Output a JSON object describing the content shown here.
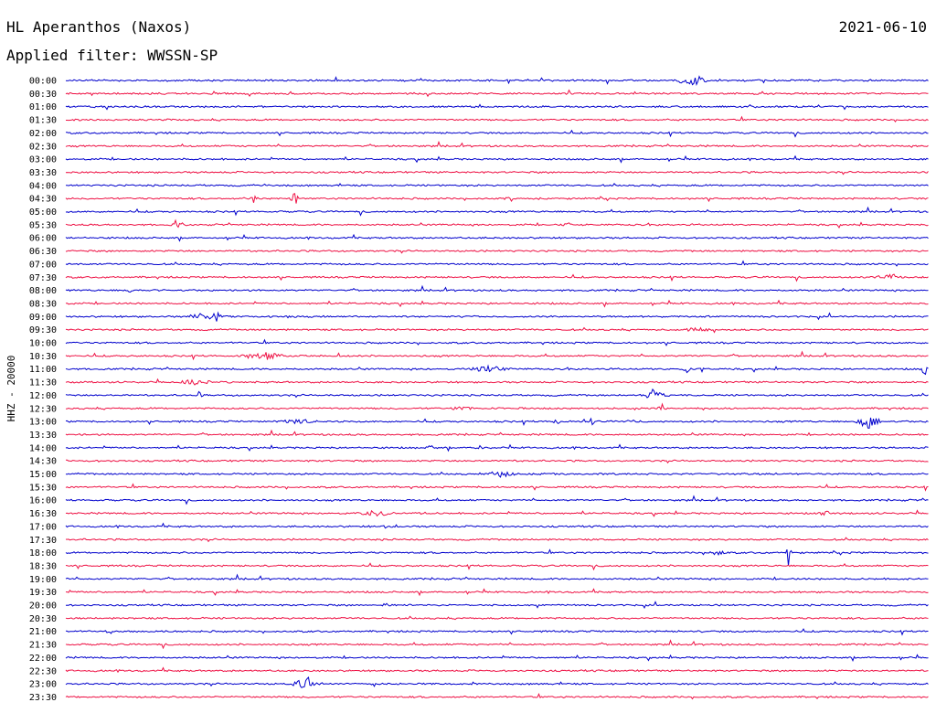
{
  "header": {
    "station": "HL Aperanthos (Naxos)",
    "date": "2021-06-10",
    "filter": "Applied filter: WWSSN-SP"
  },
  "chart_data": {
    "type": "line",
    "ylabel": "HHZ - 20000",
    "row_labels": [
      "00:00",
      "00:30",
      "01:00",
      "01:30",
      "02:00",
      "02:30",
      "03:00",
      "03:30",
      "04:00",
      "04:30",
      "05:00",
      "05:30",
      "06:00",
      "06:30",
      "07:00",
      "07:30",
      "08:00",
      "08:30",
      "09:00",
      "09:30",
      "10:00",
      "10:30",
      "11:00",
      "11:30",
      "12:00",
      "12:30",
      "13:00",
      "13:30",
      "14:00",
      "14:30",
      "15:00",
      "15:30",
      "16:00",
      "16:30",
      "17:00",
      "17:30",
      "18:00",
      "18:30",
      "19:00",
      "19:30",
      "20:00",
      "20:30",
      "21:00",
      "21:30",
      "22:00",
      "22:30",
      "23:00",
      "23:30"
    ],
    "trace_colors": [
      "#0000cc",
      "#ee1144"
    ],
    "event_fraction_range": [
      0,
      1
    ],
    "events": [
      {
        "row": 0,
        "t": 0.725,
        "amp": 9,
        "width": 0.022
      },
      {
        "row": 8,
        "t": 0.23,
        "amp": 3,
        "width": 0.004
      },
      {
        "row": 9,
        "t": 0.217,
        "amp": 10,
        "width": 0.006
      },
      {
        "row": 9,
        "t": 0.265,
        "amp": 10,
        "width": 0.006
      },
      {
        "row": 9,
        "t": 0.515,
        "amp": 6,
        "width": 0.006
      },
      {
        "row": 11,
        "t": 0.13,
        "amp": 8,
        "width": 0.008
      },
      {
        "row": 11,
        "t": 0.58,
        "amp": 5,
        "width": 0.006
      },
      {
        "row": 15,
        "t": 0.955,
        "amp": 4,
        "width": 0.03
      },
      {
        "row": 16,
        "t": 0.075,
        "amp": 5,
        "width": 0.004
      },
      {
        "row": 18,
        "t": 0.175,
        "amp": 9,
        "width": 0.006
      },
      {
        "row": 18,
        "t": 0.155,
        "amp": 4,
        "width": 0.02
      },
      {
        "row": 19,
        "t": 0.73,
        "amp": 3,
        "width": 0.04
      },
      {
        "row": 21,
        "t": 0.23,
        "amp": 5,
        "width": 0.04
      },
      {
        "row": 22,
        "t": 0.72,
        "amp": 8,
        "width": 0.006
      },
      {
        "row": 22,
        "t": 0.49,
        "amp": 4,
        "width": 0.04
      },
      {
        "row": 22,
        "t": 0.995,
        "amp": 9,
        "width": 0.004
      },
      {
        "row": 23,
        "t": 0.15,
        "amp": 4,
        "width": 0.03
      },
      {
        "row": 24,
        "t": 0.155,
        "amp": 6,
        "width": 0.004
      },
      {
        "row": 24,
        "t": 0.68,
        "amp": 7,
        "width": 0.02
      },
      {
        "row": 25,
        "t": 0.69,
        "amp": 10,
        "width": 0.006
      },
      {
        "row": 25,
        "t": 0.46,
        "amp": 4,
        "width": 0.02
      },
      {
        "row": 26,
        "t": 0.27,
        "amp": 4,
        "width": 0.03
      },
      {
        "row": 26,
        "t": 0.57,
        "amp": 5,
        "width": 0.008
      },
      {
        "row": 26,
        "t": 0.61,
        "amp": 6,
        "width": 0.006
      },
      {
        "row": 26,
        "t": 0.655,
        "amp": 6,
        "width": 0.006
      },
      {
        "row": 26,
        "t": 0.93,
        "amp": 9,
        "width": 0.018
      },
      {
        "row": 28,
        "t": 0.42,
        "amp": 4,
        "width": 0.01
      },
      {
        "row": 28,
        "t": 0.48,
        "amp": 4,
        "width": 0.006
      },
      {
        "row": 30,
        "t": 0.505,
        "amp": 5,
        "width": 0.02
      },
      {
        "row": 33,
        "t": 0.36,
        "amp": 4,
        "width": 0.03
      },
      {
        "row": 33,
        "t": 0.88,
        "amp": 4,
        "width": 0.01
      },
      {
        "row": 34,
        "t": 0.37,
        "amp": 3,
        "width": 0.004
      },
      {
        "row": 36,
        "t": 0.757,
        "amp": 4,
        "width": 0.012
      },
      {
        "row": 36,
        "t": 0.838,
        "amp": 26,
        "width": 0.003
      },
      {
        "row": 40,
        "t": 0.37,
        "amp": 3,
        "width": 0.008
      },
      {
        "row": 42,
        "t": 0.05,
        "amp": 3,
        "width": 0.008
      },
      {
        "row": 46,
        "t": 0.28,
        "amp": 9,
        "width": 0.022
      }
    ]
  }
}
